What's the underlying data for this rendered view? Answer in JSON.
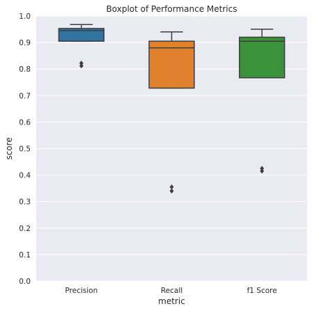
{
  "chart_data": {
    "type": "boxplot",
    "title": "Boxplot of Performance Metrics",
    "xlabel": "metric",
    "ylabel": "score",
    "ylim": [
      0,
      1.0
    ],
    "yticks": [
      0.0,
      0.1,
      0.2,
      0.3,
      0.4,
      0.5,
      0.6,
      0.7,
      0.8,
      0.9,
      1.0
    ],
    "ytick_labels": [
      "0.0",
      "0.1",
      "0.2",
      "0.3",
      "0.4",
      "0.5",
      "0.6",
      "0.7",
      "0.8",
      "0.9",
      "1.0"
    ],
    "grid": true,
    "background": "#eaeaf2",
    "boxes": [
      {
        "category": "Precision",
        "color": "#3274a1",
        "whisker_low": 0.905,
        "q1": 0.905,
        "median": 0.945,
        "q3": 0.953,
        "whisker_high": 0.968,
        "outliers": [
          0.812,
          0.822
        ]
      },
      {
        "category": "Recall",
        "color": "#e1812c",
        "whisker_low": 0.728,
        "q1": 0.728,
        "median": 0.88,
        "q3": 0.905,
        "whisker_high": 0.94,
        "outliers": [
          0.34,
          0.355
        ]
      },
      {
        "category": "f1 Score",
        "color": "#3a923a",
        "whisker_low": 0.767,
        "q1": 0.767,
        "median": 0.905,
        "q3": 0.92,
        "whisker_high": 0.95,
        "outliers": [
          0.415,
          0.425
        ]
      }
    ]
  }
}
